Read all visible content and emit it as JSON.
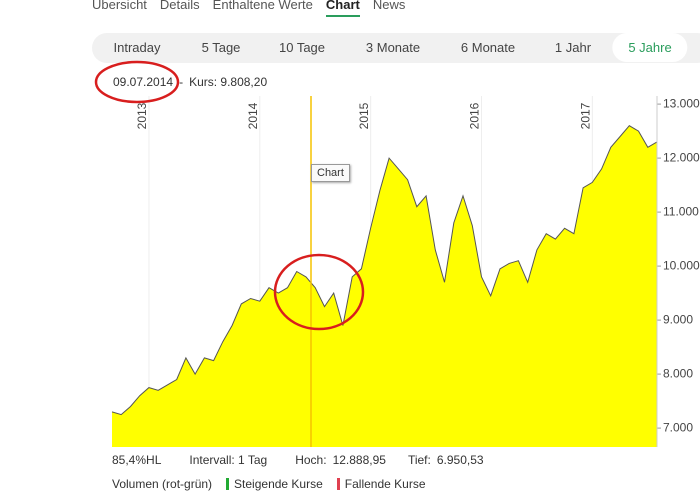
{
  "nav": {
    "tabs": [
      "Übersicht",
      "Details",
      "Enthaltene Werte",
      "Chart",
      "News"
    ],
    "active": 3
  },
  "ranges": {
    "items": [
      "Intraday",
      "5 Tage",
      "10 Tage",
      "3 Monate",
      "6 Monate",
      "1 Jahr",
      "5 Jahre"
    ],
    "active": 6
  },
  "info": {
    "date": "09.07.2014",
    "separator": "-",
    "price": "Kurs: 9.808,20"
  },
  "tooltip": "Chart",
  "chart_data": {
    "type": "area",
    "categories": [
      null,
      null,
      null,
      null,
      "2013",
      null,
      null,
      null,
      null,
      null,
      null,
      null,
      null,
      null,
      null,
      null,
      "2014",
      null,
      null,
      null,
      null,
      null,
      null,
      null,
      null,
      null,
      null,
      null,
      "2015",
      null,
      null,
      null,
      null,
      null,
      null,
      null,
      null,
      null,
      null,
      null,
      "2016",
      null,
      null,
      null,
      null,
      null,
      null,
      null,
      null,
      null,
      null,
      null,
      "2017",
      null,
      null,
      null,
      null,
      null,
      null,
      null
    ],
    "values": [
      7300,
      7250,
      7400,
      7600,
      7750,
      7700,
      7800,
      7900,
      8300,
      8000,
      8300,
      8250,
      8600,
      8900,
      9300,
      9400,
      9350,
      9600,
      9500,
      9600,
      9900,
      9800,
      9600,
      9250,
      9500,
      8900,
      9800,
      9950,
      10700,
      11400,
      12000,
      11800,
      11600,
      11100,
      11300,
      10300,
      9700,
      10800,
      11300,
      10750,
      9800,
      9450,
      9950,
      10050,
      10100,
      9700,
      10300,
      10600,
      10500,
      10700,
      10600,
      11450,
      11550,
      11800,
      12200,
      12400,
      12600,
      12500,
      12200,
      12300
    ],
    "color": "#ffff00",
    "line_color": "#555555",
    "ylim": [
      6650,
      13150
    ],
    "yticks": [
      {
        "value": 7000,
        "label": "7.000"
      },
      {
        "value": 8000,
        "label": "8.000"
      },
      {
        "value": 9000,
        "label": "9.000"
      },
      {
        "value": 10000,
        "label": "10.000"
      },
      {
        "value": 11000,
        "label": "11.000"
      },
      {
        "value": 12000,
        "label": "12.000"
      },
      {
        "value": 13000,
        "label": "13.000"
      }
    ]
  },
  "footer": {
    "stats": [
      "85,4%HL",
      "Intervall: 1 Tag",
      "Hoch:",
      "12.888,95",
      "Tief:",
      "6.950,53"
    ]
  },
  "legend": {
    "title": "Volumen (rot-grün)",
    "items": [
      {
        "label": "Steigende Kurse",
        "color": "#22aa33"
      },
      {
        "label": "Fallende Kurse",
        "color": "#e04050"
      }
    ]
  }
}
